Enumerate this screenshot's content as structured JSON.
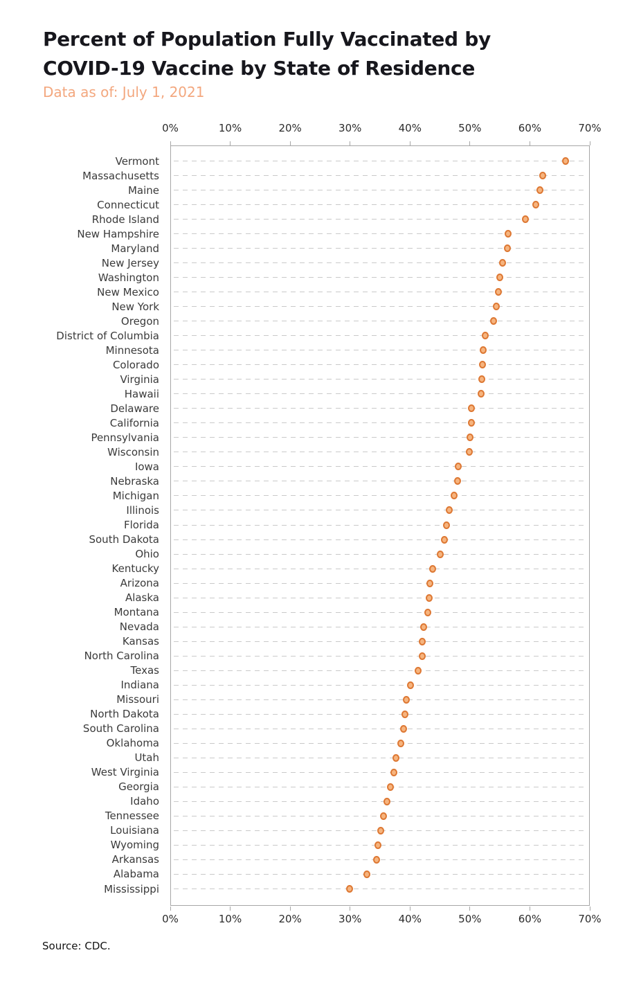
{
  "header": {
    "title_line1": "Percent of Population Fully Vaccinated by",
    "title_line2": "COVID-19 Vaccine by State of Residence",
    "subtitle": "Data as of: July 1, 2021"
  },
  "footer": {
    "source": "Source: CDC."
  },
  "colors": {
    "title": "#17171d",
    "subtitle": "#f3a77e",
    "label": "#3a3a3a",
    "axis": "#a6a6a6",
    "grid": "#c9c9c9",
    "dot_fill": "#f6b47e",
    "dot_stroke": "#dd7732"
  },
  "chart_data": {
    "type": "scatter",
    "title": "Percent of Population Fully Vaccinated by COVID-19 Vaccine by State of Residence",
    "subtitle": "Data as of: July 1, 2021",
    "unit": "%",
    "xlim": [
      0,
      70
    ],
    "x_tick_labels": [
      "0%",
      "10%",
      "20%",
      "30%",
      "40%",
      "50%",
      "60%",
      "70%"
    ],
    "grid": "horizontal-dashed",
    "legend": "none",
    "categories": [
      "Vermont",
      "Massachusetts",
      "Maine",
      "Connecticut",
      "Rhode Island",
      "New Hampshire",
      "Maryland",
      "New Jersey",
      "Washington",
      "New Mexico",
      "New York",
      "Oregon",
      "District of Columbia",
      "Minnesota",
      "Colorado",
      "Virginia",
      "Hawaii",
      "Delaware",
      "California",
      "Pennsylvania",
      "Wisconsin",
      "Iowa",
      "Nebraska",
      "Michigan",
      "Illinois",
      "Florida",
      "South Dakota",
      "Ohio",
      "Kentucky",
      "Arizona",
      "Alaska",
      "Montana",
      "Nevada",
      "Kansas",
      "North Carolina",
      "Texas",
      "Indiana",
      "Missouri",
      "North Dakota",
      "South Carolina",
      "Oklahoma",
      "Utah",
      "West Virginia",
      "Georgia",
      "Idaho",
      "Tennessee",
      "Louisiana",
      "Wyoming",
      "Arkansas",
      "Alabama",
      "Mississippi"
    ],
    "values": [
      65.9,
      62.1,
      61.7,
      61.0,
      59.3,
      56.4,
      56.2,
      55.5,
      55.0,
      54.8,
      54.4,
      54.0,
      52.6,
      52.2,
      52.1,
      52.0,
      51.9,
      50.3,
      50.2,
      50.0,
      49.9,
      48.1,
      47.9,
      47.4,
      46.5,
      46.1,
      45.7,
      45.0,
      43.8,
      43.3,
      43.2,
      43.0,
      42.3,
      42.1,
      42.0,
      41.3,
      40.1,
      39.4,
      39.2,
      38.9,
      38.5,
      37.6,
      37.3,
      36.7,
      36.2,
      35.6,
      35.1,
      34.6,
      34.4,
      32.8,
      29.9
    ]
  }
}
